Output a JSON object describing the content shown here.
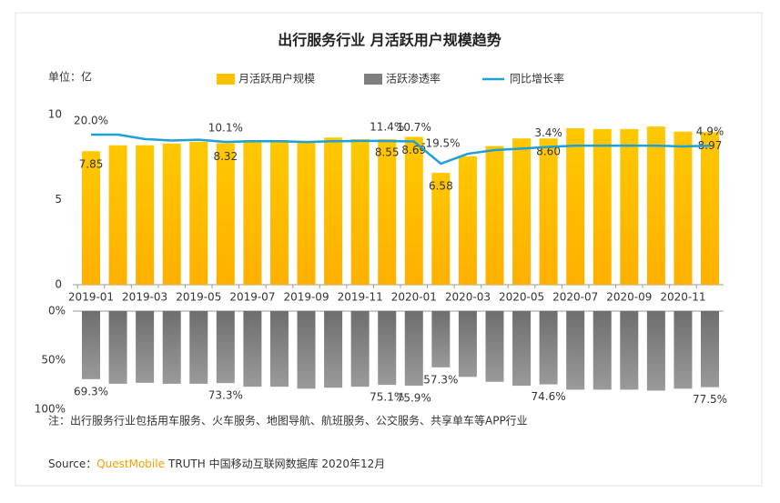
{
  "title": "出行服务行业 月活跃用户规模趋势",
  "chart_data": [
    {
      "type": "bar",
      "unit_label": "单位：亿",
      "categories": [
        "2019-01",
        null,
        "2019-03",
        null,
        "2019-05",
        null,
        "2019-07",
        null,
        "2019-09",
        null,
        "2019-11",
        null,
        "2020-01",
        null,
        "2020-03",
        null,
        "2020-05",
        null,
        "2020-07",
        null,
        "2020-09",
        null,
        "2020-11",
        null
      ],
      "ylim": [
        0,
        10
      ],
      "yticks": [
        0,
        5,
        10
      ],
      "series": [
        {
          "name": "月活跃用户规模",
          "color": "#FFC000",
          "values": [
            7.85,
            8.2,
            8.2,
            8.3,
            8.4,
            8.32,
            8.5,
            8.5,
            8.45,
            8.65,
            8.55,
            8.55,
            8.69,
            6.58,
            7.55,
            8.15,
            8.6,
            8.6,
            9.2,
            9.15,
            9.15,
            9.3,
            9.0,
            8.97
          ],
          "value_labels": [
            "7.85",
            null,
            null,
            null,
            null,
            "8.32",
            null,
            null,
            null,
            null,
            null,
            "8.55",
            "8.69",
            "6.58",
            null,
            null,
            null,
            "8.60",
            null,
            null,
            null,
            null,
            null,
            "8.97"
          ]
        },
        {
          "name": "同比增长率",
          "type": "line",
          "axis": "y2",
          "color": "#1E9FD6",
          "values": [
            20.0,
            20.0,
            14,
            12,
            13,
            10.1,
            11,
            11,
            10,
            11,
            11.5,
            11.4,
            10.7,
            -19.5,
            -6,
            -1,
            1,
            3.4,
            5,
            5,
            5,
            5,
            4,
            4.9
          ],
          "value_labels": [
            "20.0%",
            null,
            null,
            null,
            null,
            "10.1%",
            null,
            null,
            null,
            null,
            null,
            "11.4%",
            "10.7%",
            "-19.5%",
            null,
            null,
            null,
            "3.4%",
            null,
            null,
            null,
            null,
            null,
            "4.9%"
          ]
        }
      ]
    },
    {
      "type": "bar",
      "y_inverted": true,
      "ylim": [
        0,
        100
      ],
      "yticks": [
        {
          "value": 0,
          "label": "0%"
        },
        {
          "value": 50,
          "label": "50%"
        },
        {
          "value": 100,
          "label": "100%"
        }
      ],
      "series": [
        {
          "name": "活跃渗透率",
          "color": "#7F7F7F",
          "values": [
            69.3,
            74,
            73,
            74,
            74,
            73.3,
            77,
            77,
            79,
            78,
            77,
            75.1,
            75.9,
            57.3,
            67,
            72,
            76,
            74.6,
            80,
            80,
            80,
            81,
            79,
            77.5
          ],
          "value_labels": [
            "69.3%",
            null,
            null,
            null,
            null,
            "73.3%",
            null,
            null,
            null,
            null,
            null,
            "75.1%",
            "75.9%",
            "57.3%",
            null,
            null,
            null,
            "74.6%",
            null,
            null,
            null,
            null,
            null,
            "77.5%"
          ]
        }
      ]
    }
  ],
  "note": "注：出行服务行业包括用车服务、火车服务、地图导航、航班服务、公交服务、共享单车等APP行业",
  "source": {
    "prefix": "Source：",
    "brand": "QuestMobile",
    "rest": "TRUTH 中国移动互联网数据库 2020年12月"
  }
}
